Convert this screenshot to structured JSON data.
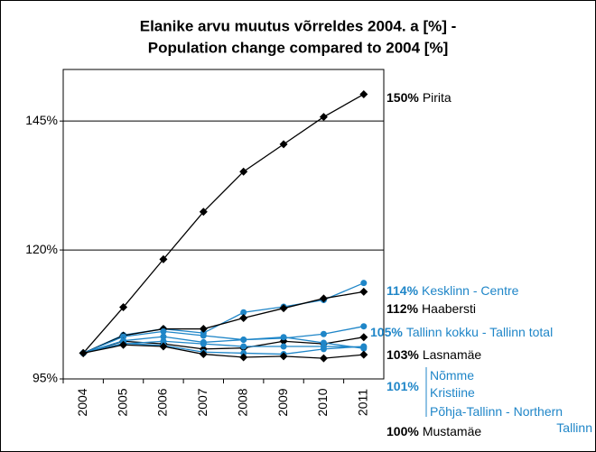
{
  "chart_data": {
    "type": "line",
    "title": [
      "Elanike arvu muutus võrreldes 2004. a [%] -",
      "Population change compared to 2004 [%]"
    ],
    "categories": [
      "2004",
      "2005",
      "2006",
      "2007",
      "2008",
      "2009",
      "2010",
      "2011"
    ],
    "ylim": [
      95,
      155
    ],
    "yticks": [
      {
        "value": 95,
        "label": "95%"
      },
      {
        "value": 120,
        "label": "120%"
      },
      {
        "value": 145,
        "label": "145%"
      }
    ],
    "grid": true,
    "series": [
      {
        "name": "Pirita",
        "color": "#000000",
        "marker": "diamond",
        "value_label": "150%",
        "values": [
          100,
          108.9,
          118.2,
          127.4,
          135.2,
          140.5,
          145.8,
          150.2
        ]
      },
      {
        "name": "Kesklinn - Centre",
        "color": "#1f86c8",
        "marker": "circle",
        "value_label": "114%",
        "values": [
          100,
          103.5,
          104.7,
          103.9,
          107.9,
          109.0,
          110.3,
          113.6
        ]
      },
      {
        "name": "Haabersti",
        "color": "#000000",
        "marker": "diamond",
        "value_label": "112%",
        "values": [
          100,
          103.4,
          104.7,
          104.7,
          106.8,
          108.7,
          110.6,
          111.9
        ]
      },
      {
        "name": "Tallinn kokku - Tallinn total",
        "color": "#1f86c8",
        "marker": "circle",
        "value_label": "105%",
        "values": [
          100,
          103.2,
          104.2,
          103.4,
          102.6,
          102.9,
          103.7,
          105.2
        ]
      },
      {
        "name": "Lasnamäe",
        "color": "#000000",
        "marker": "diamond",
        "value_label": "103%",
        "values": [
          100,
          102.3,
          101.8,
          100.8,
          101.0,
          102.3,
          101.8,
          103.1
        ]
      },
      {
        "name": "Nõmme",
        "color": "#1f86c8",
        "marker": "circle",
        "value_label": "101%",
        "values": [
          100,
          101.8,
          102.3,
          101.8,
          101.3,
          101.3,
          101.3,
          101.2
        ]
      },
      {
        "name": "Kristiine",
        "color": "#1f86c8",
        "marker": "circle",
        "values": [
          100,
          102.4,
          103.2,
          102.1,
          102.6,
          103.1,
          102.0,
          100.9
        ]
      },
      {
        "name": "Põhja-Tallinn - Northern Tallinn",
        "color": "#1f86c8",
        "marker": "circle",
        "values": [
          100,
          101.9,
          101.5,
          100.2,
          100.0,
          99.8,
          100.8,
          101.3
        ]
      },
      {
        "name": "Mustamäe",
        "color": "#000000",
        "marker": "diamond",
        "value_label": "100%",
        "values": [
          100,
          101.6,
          101.3,
          99.8,
          99.2,
          99.4,
          99.0,
          99.7
        ]
      }
    ]
  }
}
